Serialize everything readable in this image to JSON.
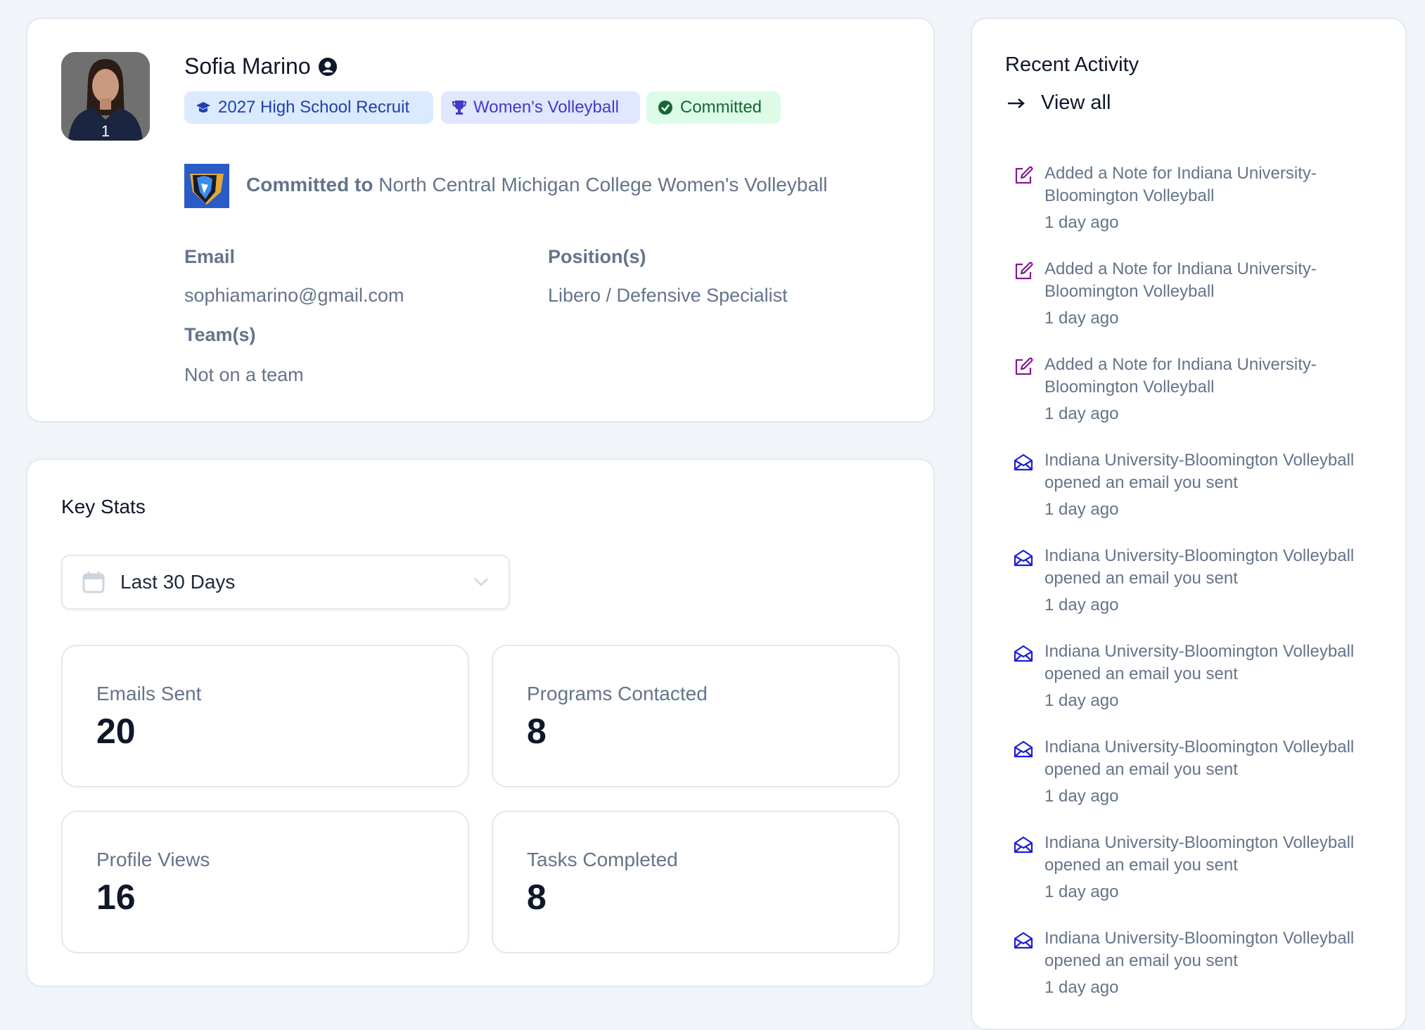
{
  "profile": {
    "name": "Sofia Marino",
    "badges": {
      "class": "2027 High School Recruit",
      "sport": "Women's Volleyball",
      "status": "Committed"
    },
    "commitment_prefix": "Committed to",
    "commitment_school": "North Central Michigan College Women's Volleyball",
    "email_label": "Email",
    "email": "sophiamarino@gmail.com",
    "positions_label": "Position(s)",
    "positions": "Libero / Defensive Specialist",
    "teams_label": "Team(s)",
    "teams": "Not on a team",
    "jersey_number": "1"
  },
  "key_stats": {
    "title": "Key Stats",
    "range": "Last 30 Days",
    "stats": [
      {
        "label": "Emails Sent",
        "value": "20"
      },
      {
        "label": "Programs Contacted",
        "value": "8"
      },
      {
        "label": "Profile Views",
        "value": "16"
      },
      {
        "label": "Tasks Completed",
        "value": "8"
      }
    ]
  },
  "activity": {
    "title": "Recent Activity",
    "view_all": "View all",
    "items": [
      {
        "icon": "pencil-square-icon",
        "text": "Added a Note for Indiana University-Bloomington Volleyball",
        "time": "1 day ago"
      },
      {
        "icon": "pencil-square-icon",
        "text": "Added a Note for Indiana University-Bloomington Volleyball",
        "time": "1 day ago"
      },
      {
        "icon": "pencil-square-icon",
        "text": "Added a Note for Indiana University-Bloomington Volleyball",
        "time": "1 day ago"
      },
      {
        "icon": "envelope-open-icon",
        "text": "Indiana University-Bloomington Volleyball opened an email you sent",
        "time": "1 day ago"
      },
      {
        "icon": "envelope-open-icon",
        "text": "Indiana University-Bloomington Volleyball opened an email you sent",
        "time": "1 day ago"
      },
      {
        "icon": "envelope-open-icon",
        "text": "Indiana University-Bloomington Volleyball opened an email you sent",
        "time": "1 day ago"
      },
      {
        "icon": "envelope-open-icon",
        "text": "Indiana University-Bloomington Volleyball opened an email you sent",
        "time": "1 day ago"
      },
      {
        "icon": "envelope-open-icon",
        "text": "Indiana University-Bloomington Volleyball opened an email you sent",
        "time": "1 day ago"
      },
      {
        "icon": "envelope-open-icon",
        "text": "Indiana University-Bloomington Volleyball opened an email you sent",
        "time": "1 day ago"
      }
    ]
  },
  "colors": {
    "note_icon": "#86198f",
    "email_icon": "#1d1dd8",
    "background": "#f1f5f9"
  }
}
